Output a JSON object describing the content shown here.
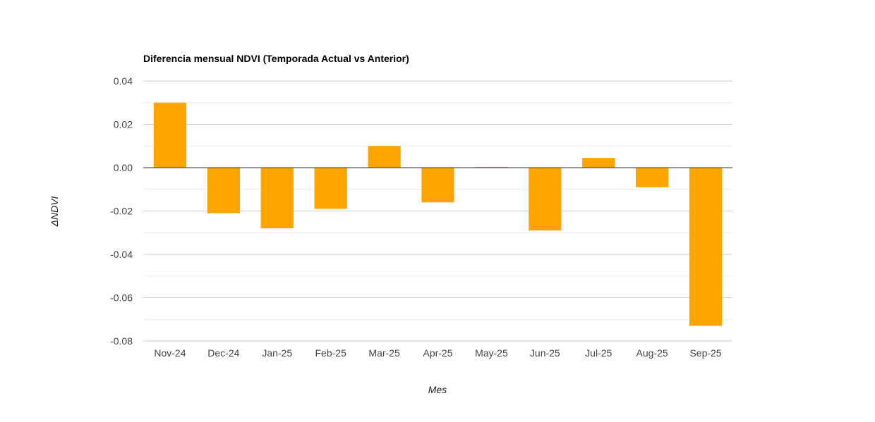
{
  "colors": {
    "bar": "#FFA500",
    "gridline": "#cccccc",
    "minor_gridline": "#ebebeb",
    "baseline": "#333333",
    "text": "#444444"
  },
  "chart_data": {
    "type": "bar",
    "title": "Diferencia mensual NDVI (Temporada Actual vs Anterior)",
    "xlabel": "Mes",
    "ylabel": "ΔNDVI",
    "categories": [
      "Nov-24",
      "Dec-24",
      "Jan-25",
      "Feb-25",
      "Mar-25",
      "Apr-25",
      "May-25",
      "Jun-25",
      "Jul-25",
      "Aug-25",
      "Sep-25"
    ],
    "values": [
      0.03,
      -0.021,
      -0.028,
      -0.019,
      0.01,
      -0.016,
      0.0003,
      -0.029,
      0.0045,
      -0.009,
      -0.073
    ],
    "ylim": [
      -0.08,
      0.04
    ],
    "yticks": [
      0.04,
      0.02,
      0.0,
      -0.02,
      -0.04,
      -0.06,
      -0.08
    ],
    "ytick_labels": [
      "0.04",
      "0.02",
      "0.00",
      "-0.02",
      "-0.04",
      "-0.06",
      "-0.08"
    ],
    "grid": true,
    "legend": "none"
  }
}
